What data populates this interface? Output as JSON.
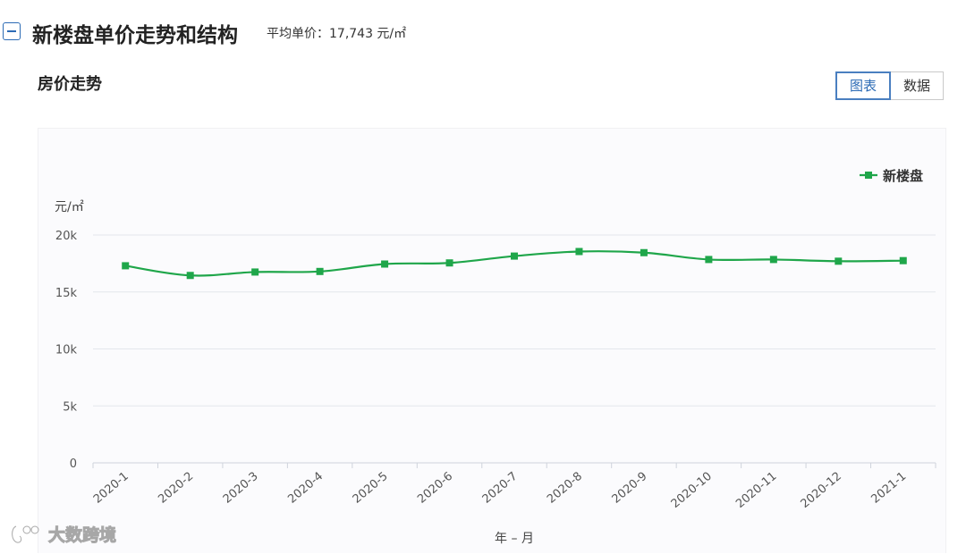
{
  "header": {
    "title": "新楼盘单价走势和结构",
    "avg_label": "平均单价：",
    "avg_value": "17,743 元/㎡"
  },
  "section": {
    "title": "房价走势"
  },
  "view_toggle": {
    "chart_label": "图表",
    "data_label": "数据",
    "selected": "图表"
  },
  "watermark": {
    "text": "大数跨境"
  },
  "chart_data": {
    "type": "line",
    "x": [
      "2020-1",
      "2020-2",
      "2020-3",
      "2020-4",
      "2020-5",
      "2020-6",
      "2020-7",
      "2020-8",
      "2020-9",
      "2020-10",
      "2020-11",
      "2020-12",
      "2021-1"
    ],
    "series": [
      {
        "name": "新楼盘",
        "values": [
          17300,
          16450,
          16750,
          16800,
          17450,
          17550,
          18150,
          18550,
          18450,
          17850,
          17850,
          17700,
          17750
        ],
        "color": "#1fa64a"
      }
    ],
    "ylabel": "元/㎡",
    "xlabel": "年 – 月",
    "ylim": [
      0,
      20000
    ],
    "yticks": [
      0,
      5000,
      10000,
      15000,
      20000
    ],
    "ytick_labels": [
      "0",
      "5k",
      "10k",
      "15k",
      "20k"
    ],
    "grid": "horizontal",
    "legend": "top-right",
    "marker": "square",
    "smooth": true
  }
}
